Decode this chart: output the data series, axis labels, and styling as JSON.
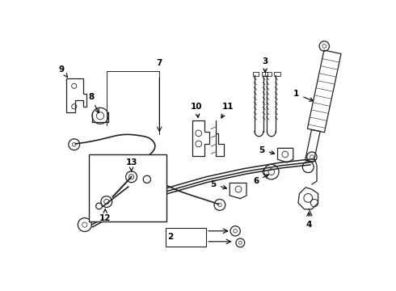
{
  "background_color": "#ffffff",
  "line_color": "#222222",
  "label_color": "#000000",
  "fig_width": 4.9,
  "fig_height": 3.6,
  "dpi": 100
}
